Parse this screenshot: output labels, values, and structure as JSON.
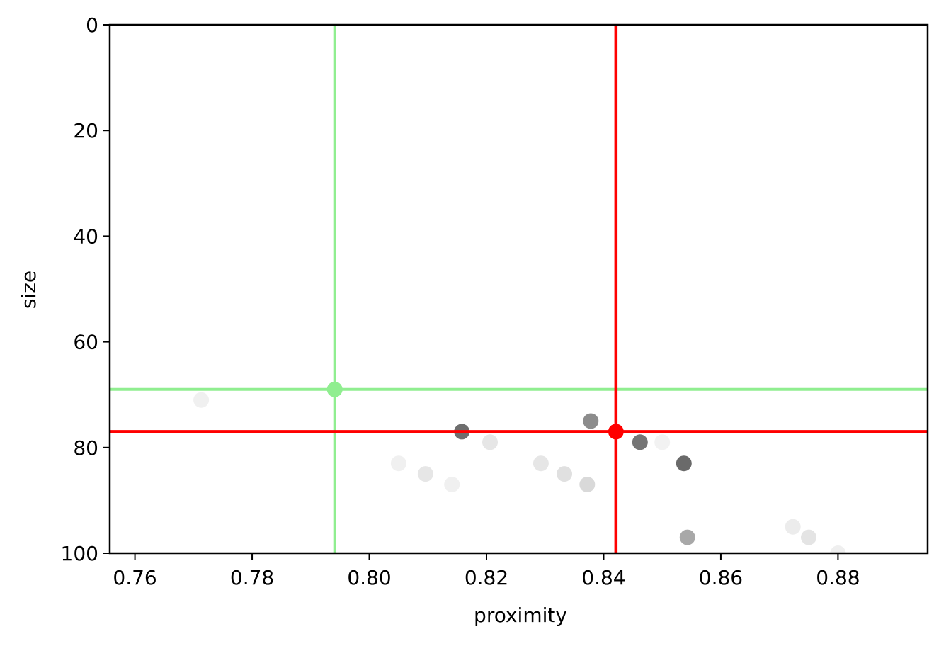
{
  "chart_data": {
    "type": "scatter",
    "title": "",
    "xlabel": "proximity",
    "ylabel": "size",
    "xlim": [
      0.7557,
      0.8953
    ],
    "ylim": [
      100,
      0
    ],
    "y_axis_inverted": true,
    "xticks": [
      0.76,
      0.78,
      0.8,
      0.82,
      0.84,
      0.86,
      0.88
    ],
    "xtick_labels": [
      "0.76",
      "0.78",
      "0.80",
      "0.82",
      "0.84",
      "0.86",
      "0.88"
    ],
    "yticks": [
      0,
      20,
      40,
      60,
      80,
      100
    ],
    "ytick_labels": [
      "0",
      "20",
      "40",
      "60",
      "80",
      "100"
    ],
    "grid": false,
    "legend": "none",
    "points": [
      {
        "x": 0.7713,
        "y": 71,
        "color": "#f0f0f0"
      },
      {
        "x": 0.805,
        "y": 83,
        "color": "#f0f0f0"
      },
      {
        "x": 0.8096,
        "y": 85,
        "color": "#e6e6e6"
      },
      {
        "x": 0.8141,
        "y": 87,
        "color": "#f0f0f0"
      },
      {
        "x": 0.8158,
        "y": 77,
        "color": "#6e6e6e"
      },
      {
        "x": 0.8206,
        "y": 79,
        "color": "#e6e6e6"
      },
      {
        "x": 0.8293,
        "y": 83,
        "color": "#e6e6e6"
      },
      {
        "x": 0.8333,
        "y": 85,
        "color": "#e0e0e0"
      },
      {
        "x": 0.8372,
        "y": 87,
        "color": "#d9d9d9"
      },
      {
        "x": 0.8378,
        "y": 75,
        "color": "#8c8c8c"
      },
      {
        "x": 0.8462,
        "y": 79,
        "color": "#757575"
      },
      {
        "x": 0.85,
        "y": 79,
        "color": "#f2f2f2"
      },
      {
        "x": 0.8537,
        "y": 83,
        "color": "#6a6a6a"
      },
      {
        "x": 0.8543,
        "y": 97,
        "color": "#a8a8a8"
      },
      {
        "x": 0.8723,
        "y": 95,
        "color": "#ececec"
      },
      {
        "x": 0.875,
        "y": 97,
        "color": "#e4e4e4"
      },
      {
        "x": 0.88,
        "y": 100,
        "color": "#efefef"
      }
    ],
    "highlights": [
      {
        "x": 0.7941,
        "y": 69,
        "color": "#90ee90"
      },
      {
        "x": 0.8421,
        "y": 77,
        "color": "#ff0000"
      }
    ]
  }
}
